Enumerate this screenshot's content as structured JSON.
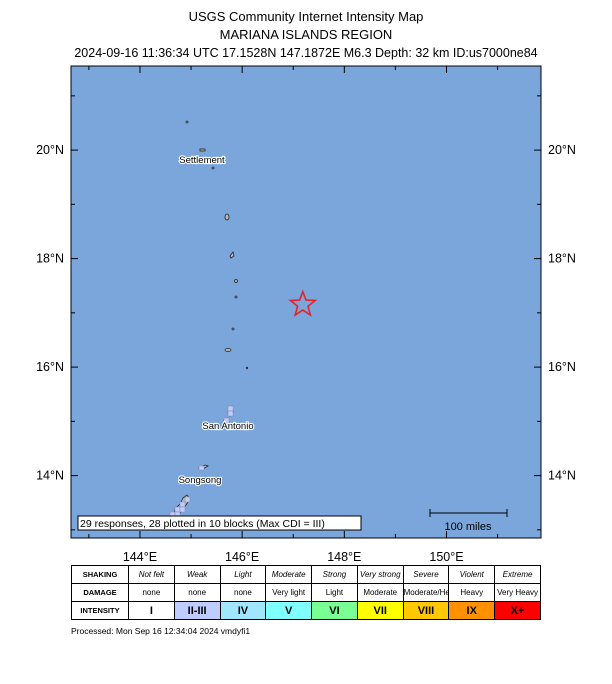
{
  "header": {
    "line1": "USGS Community Internet Intensity Map",
    "line2": "MARIANA ISLANDS REGION",
    "line3": "2024-09-16 11:36:34 UTC 17.1528N 147.1872E M6.3 Depth: 32 km ID:us7000ne84"
  },
  "map": {
    "ocean_color": "#7aa6dc",
    "lon_labels": [
      "144°E",
      "146°E",
      "148°E",
      "150°E"
    ],
    "lat_labels": [
      "20°N",
      "18°N",
      "16°N",
      "14°N"
    ],
    "places": {
      "settlement": "Settlement",
      "san_antonio": "San Antonio",
      "songsong": "Songsong"
    },
    "epicenter": {
      "lat": 17.1528,
      "lon": 147.1872,
      "icon": "star-icon",
      "color": "#e8202a"
    },
    "responses_text": "29 responses, 28 plotted in 10 blocks (Max CDI = III)",
    "scale_label": "100 miles"
  },
  "legend": {
    "shaking_label": "SHAKING",
    "damage_label": "DAMAGE",
    "intensity_label": "INTENSITY",
    "shaking": [
      "Not felt",
      "Weak",
      "Light",
      "Moderate",
      "Strong",
      "Very strong",
      "Severe",
      "Violent",
      "Extreme"
    ],
    "damage": [
      "none",
      "none",
      "none",
      "Very light",
      "Light",
      "Moderate",
      "Moderate/Heavy",
      "Heavy",
      "Very Heavy"
    ],
    "intensity": [
      "I",
      "II-III",
      "IV",
      "V",
      "VI",
      "VII",
      "VIII",
      "IX",
      "X+"
    ],
    "colors": [
      "#ffffff",
      "#bfccff",
      "#a0e6ff",
      "#80ffff",
      "#7aff93",
      "#ffff00",
      "#ffc800",
      "#ff9100",
      "#ff0000"
    ]
  },
  "footer": {
    "processed": "Processed: Mon Sep 16 12:34:04 2024 vmdyfi1"
  }
}
